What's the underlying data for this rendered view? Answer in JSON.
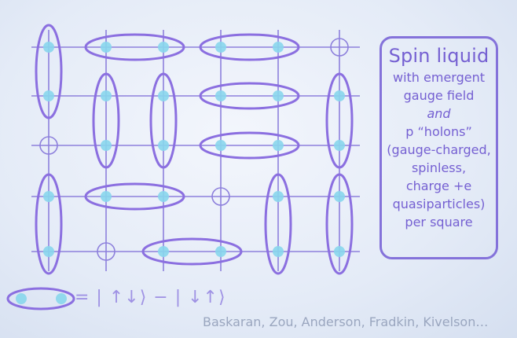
{
  "info_box": {
    "title": "Spin liquid",
    "lines": [
      {
        "text": "with emergent",
        "italic": false
      },
      {
        "text": "gauge field",
        "italic": false
      },
      {
        "text": "and",
        "italic": true
      },
      {
        "text": "p “holons”",
        "italic": false
      },
      {
        "text": "(gauge-charged,",
        "italic": false
      },
      {
        "text": "spinless,",
        "italic": false
      },
      {
        "text": "charge +e",
        "italic": false
      },
      {
        "text": "quasiparticles)",
        "italic": false
      },
      {
        "text": "per square",
        "italic": false
      }
    ]
  },
  "legend": {
    "equation": "= | ↑↓⟩ − | ↓↑⟩"
  },
  "credit": "Baskaran, Zou, Anderson, Fradkin, Kivelson…",
  "colors": {
    "lattice_line": "#8d80dc",
    "bond_ellipse": "#8b6fe0",
    "spin_dot": "#88d6ec",
    "info_text": "#7560d2",
    "credit_text": "#9aa6bf"
  }
}
